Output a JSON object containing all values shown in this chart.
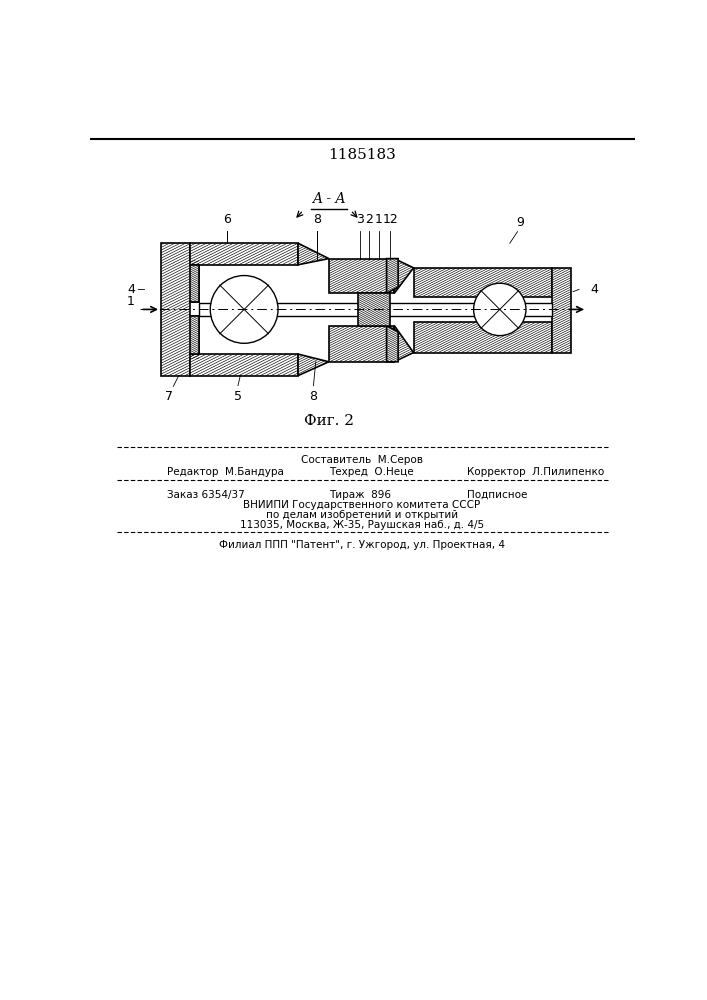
{
  "patent_number": "1185183",
  "fig_label": "Фиг. 2",
  "section_label": "A - A",
  "footer": {
    "composer": "Составитель  М.Серов",
    "editor": "Редактор  М.Бандура",
    "techred": "Техред  О.Неце",
    "corrector": "Корректор  Л.Пилипенко",
    "order": "Заказ 6354/37",
    "tirazh": "Тираж  896",
    "podpisnoe": "Подписное",
    "vnipi_line1": "ВНИИПИ Государственного комитета СССР",
    "vnipi_line2": "по делам изобретений и открытий",
    "vnipi_line3": "113035, Москва, Ж-35, Раушская наб., д. 4/5",
    "filial": "Филиал ППП \"Патент\", г. Ужгород, ул. Проектная, 4"
  },
  "bg_color": "#ffffff",
  "drawing_color": "#000000"
}
